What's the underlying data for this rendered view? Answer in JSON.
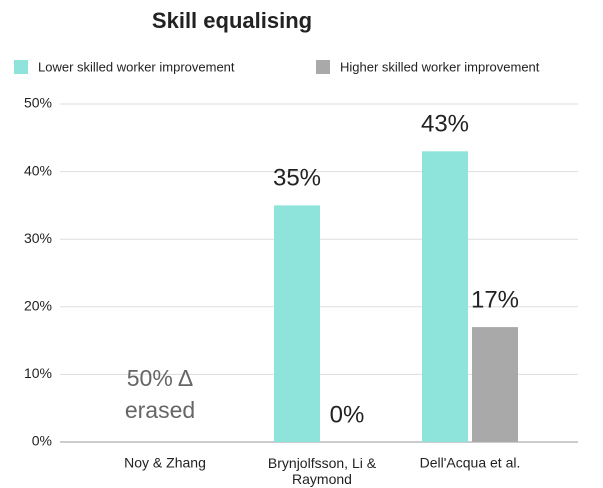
{
  "chart_data": {
    "type": "bar",
    "title": "Skill equalising",
    "categories": [
      "Noy & Zhang",
      "Brynjolfsson, Li & Raymond",
      "Dell'Acqua et al."
    ],
    "series": [
      {
        "name": "Lower skilled worker improvement",
        "color": "#8ee3da",
        "values": [
          null,
          35,
          43
        ],
        "value_labels": [
          null,
          "35%",
          "43%"
        ]
      },
      {
        "name": "Higher skilled worker improvement",
        "color": "#a9a9a9",
        "values": [
          null,
          0,
          17
        ],
        "value_labels": [
          null,
          "0%",
          "17%"
        ]
      }
    ],
    "annotation": [
      "50% Δ",
      "erased"
    ],
    "ylim": [
      0,
      50
    ],
    "yticks": [
      {
        "value": 0,
        "label": "0%"
      },
      {
        "value": 10,
        "label": "10%"
      },
      {
        "value": 20,
        "label": "20%"
      },
      {
        "value": 30,
        "label": "30%"
      },
      {
        "value": 40,
        "label": "40%"
      },
      {
        "value": 50,
        "label": "50%"
      }
    ],
    "grid": true
  }
}
